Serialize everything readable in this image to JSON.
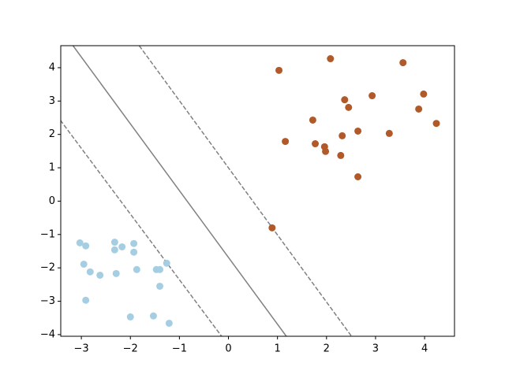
{
  "chart_data": {
    "type": "scatter",
    "xlim": [
      -3.42,
      4.61
    ],
    "ylim": [
      -4.05,
      4.66
    ],
    "xticks": [
      {
        "value": -3,
        "label": "−3"
      },
      {
        "value": -2,
        "label": "−2"
      },
      {
        "value": -1,
        "label": "−1"
      },
      0,
      1,
      2,
      3,
      4
    ],
    "yticks": [
      {
        "value": -4,
        "label": "−4"
      },
      {
        "value": -3,
        "label": "−3"
      },
      {
        "value": -2,
        "label": "−2"
      },
      {
        "value": -1,
        "label": "−1"
      },
      0,
      1,
      2,
      3,
      4
    ],
    "series": [
      {
        "color": "#b15928",
        "x": [
          1.03,
          2.08,
          3.56,
          3.98,
          2.37,
          2.45,
          2.93,
          3.88,
          4.24,
          1.72,
          2.64,
          2.32,
          3.28,
          1.16,
          1.77,
          1.96,
          1.98,
          2.29,
          2.64,
          0.89
        ],
        "values": [
          3.92,
          4.27,
          4.15,
          3.21,
          3.04,
          2.81,
          3.16,
          2.76,
          2.33,
          2.43,
          2.1,
          1.96,
          2.03,
          1.79,
          1.72,
          1.63,
          1.49,
          1.37,
          0.73,
          -0.8
        ]
      },
      {
        "color": "#a6cee3",
        "x": [
          -3.03,
          -2.91,
          -2.32,
          -2.17,
          -1.93,
          -2.32,
          -1.93,
          -1.26,
          -2.95,
          -2.82,
          -2.62,
          -2.29,
          -1.87,
          -1.47,
          -1.4,
          -1.4,
          -2.91,
          -2.0,
          -1.53,
          -1.21
        ],
        "values": [
          -1.25,
          -1.34,
          -1.23,
          -1.37,
          -1.27,
          -1.46,
          -1.53,
          -1.86,
          -1.89,
          -2.12,
          -2.22,
          -2.17,
          -2.05,
          -2.05,
          -2.05,
          -2.55,
          -2.97,
          -3.47,
          -3.44,
          -3.66
        ]
      }
    ],
    "lines": [
      {
        "style": "solid",
        "color": "#808080",
        "x": [
          -3.17,
          1.18
        ],
        "values": [
          4.66,
          -4.05
        ]
      },
      {
        "style": "dashed",
        "color": "#808080",
        "x": [
          -1.82,
          2.51
        ],
        "values": [
          4.66,
          -4.05
        ]
      },
      {
        "style": "dashed",
        "color": "#808080",
        "x": [
          -3.43,
          -0.14
        ],
        "values": [
          2.43,
          -4.05
        ]
      }
    ]
  }
}
